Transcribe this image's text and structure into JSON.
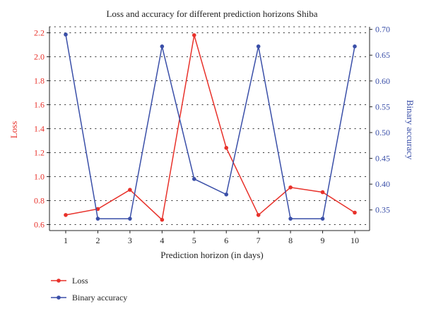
{
  "chart_data": {
    "type": "line",
    "title": "Loss and accuracy for different prediction horizons Shiba",
    "xlabel": "Prediction horizon (in days)",
    "ylabel_left": "Loss",
    "ylabel_right": "Binary accuracy",
    "x": [
      1,
      2,
      3,
      4,
      5,
      6,
      7,
      8,
      9,
      10
    ],
    "x_ticks": [
      "1",
      "2",
      "3",
      "4",
      "5",
      "6",
      "7",
      "8",
      "9",
      "10"
    ],
    "ylim_left": [
      0.55,
      2.25
    ],
    "ylim_right": [
      0.31,
      0.705
    ],
    "y_ticks_left": [
      "0.6",
      "0.8",
      "1.0",
      "1.2",
      "1.4",
      "1.6",
      "1.8",
      "2.0",
      "2.2"
    ],
    "y_ticks_right": [
      "0.35",
      "0.40",
      "0.45",
      "0.50",
      "0.55",
      "0.60",
      "0.65",
      "0.70"
    ],
    "grid": "dotted horizontal",
    "legend_position": "bottom-left",
    "series": [
      {
        "name": "Loss",
        "axis": "left",
        "color": "#e8312a",
        "values": [
          0.68,
          0.73,
          0.89,
          0.64,
          2.18,
          1.24,
          0.68,
          0.91,
          0.87,
          0.7
        ]
      },
      {
        "name": "Binary accuracy",
        "axis": "right",
        "color": "#3a4fa8",
        "values": [
          0.69,
          0.333,
          0.333,
          0.667,
          0.41,
          0.38,
          0.667,
          0.333,
          0.333,
          0.667
        ]
      }
    ]
  }
}
